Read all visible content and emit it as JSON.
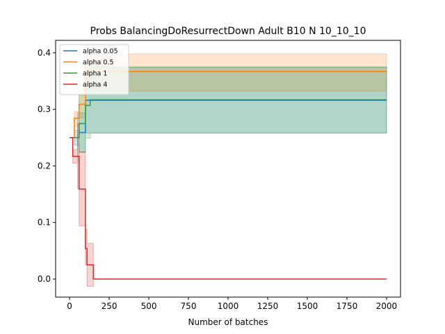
{
  "chart_data": {
    "type": "line",
    "title": "Probs BalancingDoResurrectDown Adult B10 N 10_10_10",
    "xlabel": "Number of batches",
    "ylabel": "",
    "xlim": [
      -88,
      2088
    ],
    "ylim": [
      -0.032,
      0.422
    ],
    "xticks": [
      0,
      250,
      500,
      750,
      1000,
      1250,
      1500,
      1750,
      2000
    ],
    "yticks": [
      0.0,
      0.1,
      0.2,
      0.3,
      0.4
    ],
    "ytick_labels": [
      "0.0",
      "0.1",
      "0.2",
      "0.3",
      "0.4"
    ],
    "grid": false,
    "legend_position": "top-left",
    "series": [
      {
        "name": "alpha 0.05",
        "color": "#1f77b4",
        "x": [
          0,
          30,
          60,
          90,
          100,
          130,
          2000
        ],
        "y": [
          0.25,
          0.25,
          0.259,
          0.259,
          0.316,
          0.316,
          0.316
        ],
        "lower": [
          0.25,
          0.237,
          0.224,
          0.224,
          0.258,
          0.258,
          0.258
        ],
        "upper": [
          0.25,
          0.263,
          0.294,
          0.294,
          0.375,
          0.375,
          0.375
        ]
      },
      {
        "name": "alpha 0.5",
        "color": "#ff7f0e",
        "x": [
          0,
          30,
          60,
          100,
          130,
          2000
        ],
        "y": [
          0.25,
          0.284,
          0.309,
          0.367,
          0.367,
          0.367
        ],
        "lower": [
          0.25,
          0.27,
          0.285,
          0.332,
          0.332,
          0.332
        ],
        "upper": [
          0.25,
          0.296,
          0.333,
          0.398,
          0.398,
          0.398
        ]
      },
      {
        "name": "alpha 1",
        "color": "#2ca02c",
        "x": [
          0,
          50,
          60,
          90,
          100,
          130,
          2000
        ],
        "y": [
          0.25,
          0.25,
          0.275,
          0.275,
          0.307,
          0.317,
          0.317
        ],
        "lower": [
          0.25,
          0.207,
          0.224,
          0.224,
          0.249,
          0.258,
          0.258
        ],
        "upper": [
          0.25,
          0.294,
          0.325,
          0.325,
          0.366,
          0.375,
          0.375
        ]
      },
      {
        "name": "alpha 4",
        "color": "#d62728",
        "x": [
          0,
          20,
          50,
          60,
          90,
          100,
          110,
          150,
          2000
        ],
        "y": [
          0.25,
          0.217,
          0.217,
          0.159,
          0.159,
          0.054,
          0.025,
          0.0,
          0.0
        ],
        "lower": [
          0.25,
          0.205,
          0.16,
          0.094,
          0.094,
          0.025,
          -0.013,
          0.0,
          0.0
        ],
        "upper": [
          0.25,
          0.229,
          0.274,
          0.225,
          0.225,
          0.088,
          0.063,
          0.0,
          0.0
        ]
      }
    ]
  }
}
